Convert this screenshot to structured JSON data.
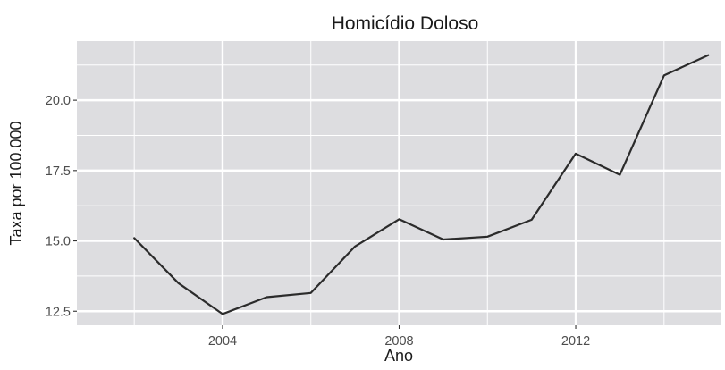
{
  "chart_data": {
    "type": "line",
    "title": "Homicídio Doloso",
    "xlabel": "Ano",
    "ylabel": "Taxa por 100.000",
    "x": [
      2002,
      2003,
      2004,
      2005,
      2006,
      2007,
      2008,
      2009,
      2010,
      2011,
      2012,
      2013,
      2014,
      2015
    ],
    "series": [
      {
        "values": [
          15.1,
          13.5,
          12.4,
          13.0,
          13.15,
          14.8,
          15.77,
          15.05,
          15.15,
          15.75,
          18.1,
          17.35,
          20.88,
          21.6
        ]
      }
    ],
    "xlim": [
      2000.7,
      2015.3
    ],
    "ylim": [
      12.0,
      22.1
    ],
    "x_ticks": [
      2004,
      2008,
      2012
    ],
    "x_tick_labels": [
      "2004",
      "2008",
      "2012"
    ],
    "y_ticks": [
      12.5,
      15.0,
      17.5,
      20.0
    ],
    "y_tick_labels": [
      "12.5",
      "15.0",
      "17.5",
      "20.0"
    ],
    "grid": true,
    "legend": "none",
    "colors": {
      "panel": "#dddde0",
      "grid": "#ffffff",
      "line": "#2b2b2b",
      "tick_text": "#4d4d4d"
    }
  }
}
